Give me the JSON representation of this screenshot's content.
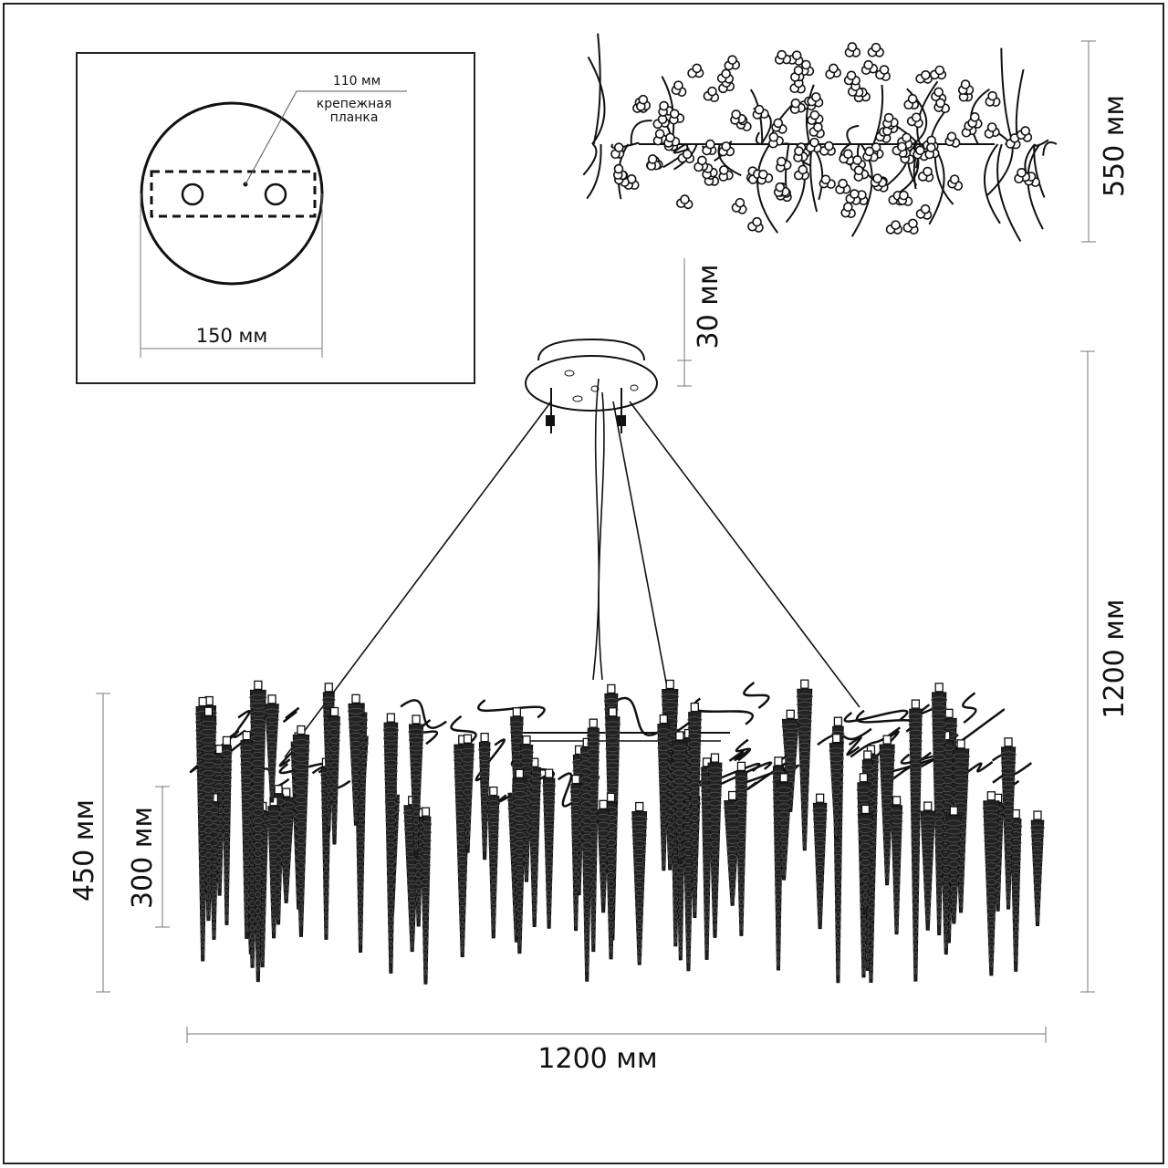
{
  "mount_detail": {
    "plate_length_label": "110 мм",
    "plate_name_line1": "крепежная",
    "plate_name_line2": "планка",
    "canopy_diameter_label": "150 мм"
  },
  "dimensions": {
    "top_view_depth": "550 мм",
    "canopy_height": "30 мм",
    "total_height": "1200 мм",
    "body_height_max": "450 мм",
    "body_height_min": "300 мм",
    "width": "1200 мм"
  },
  "colors": {
    "line": "#111111",
    "background": "#ffffff"
  }
}
